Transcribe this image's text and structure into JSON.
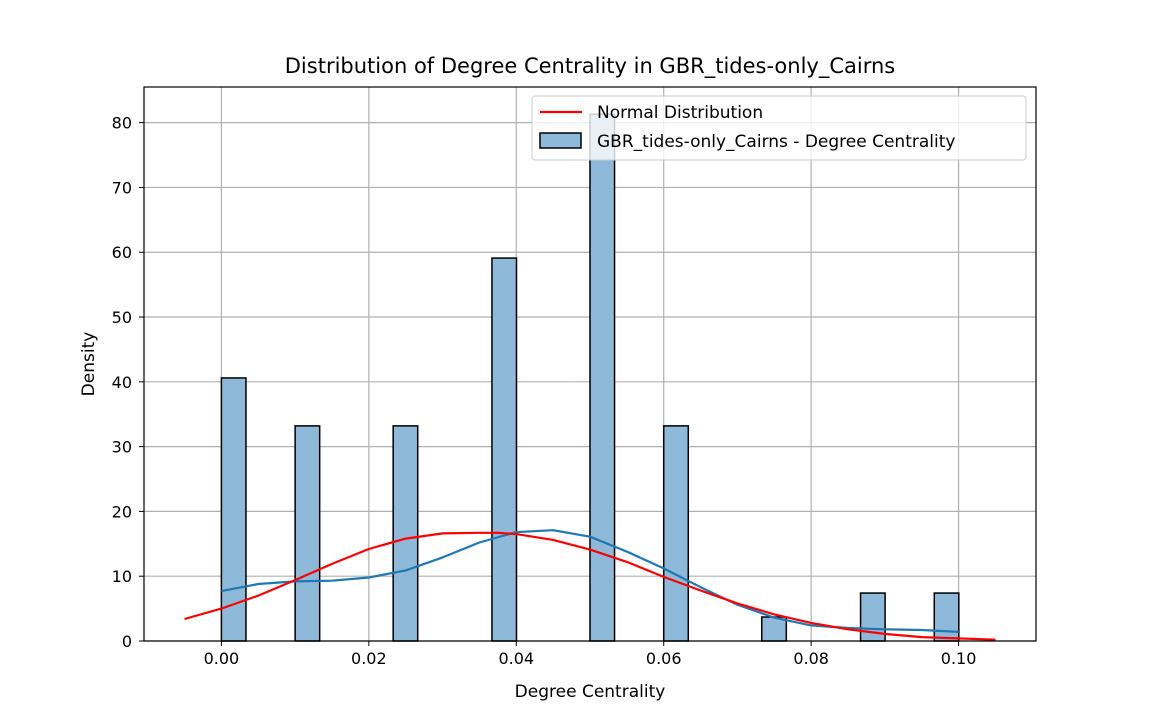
{
  "colors": {
    "bar_fill": "#8fb9d8",
    "bar_edge": "#000000",
    "kde_line": "#1f77b4",
    "normal_line": "#ff0000",
    "grid": "#b0b0b0"
  },
  "chart_data": {
    "type": "bar",
    "title": "Distribution of Degree Centrality in GBR_tides-only_Cairns",
    "xlabel": "Degree Centrality",
    "ylabel": "Density",
    "xlim": [
      -0.0105,
      0.1105
    ],
    "ylim": [
      0,
      85.5
    ],
    "grid": true,
    "legend_position": "top-right",
    "x_ticks": [
      0.0,
      0.02,
      0.04,
      0.06,
      0.08,
      0.1
    ],
    "x_tick_labels": [
      "0.00",
      "0.02",
      "0.04",
      "0.06",
      "0.08",
      "0.10"
    ],
    "y_ticks": [
      0,
      10,
      20,
      30,
      40,
      50,
      60,
      70,
      80
    ],
    "y_tick_labels": [
      "0",
      "10",
      "20",
      "30",
      "40",
      "50",
      "60",
      "70",
      "80"
    ],
    "bin_width": 0.00333,
    "bars": [
      {
        "x0": 0.0,
        "value": 40.6
      },
      {
        "x0": 0.01,
        "value": 33.2
      },
      {
        "x0": 0.0233,
        "value": 33.2
      },
      {
        "x0": 0.0367,
        "value": 59.1
      },
      {
        "x0": 0.05,
        "value": 81.3
      },
      {
        "x0": 0.06,
        "value": 33.2
      },
      {
        "x0": 0.0733,
        "value": 3.7
      },
      {
        "x0": 0.0867,
        "value": 7.4
      },
      {
        "x0": 0.0967,
        "value": 7.4
      }
    ],
    "series": [
      {
        "name": "Normal Distribution",
        "type": "line",
        "x": [
          -0.005,
          0.0,
          0.005,
          0.01,
          0.015,
          0.02,
          0.025,
          0.03,
          0.035,
          0.0375,
          0.04,
          0.045,
          0.05,
          0.055,
          0.06,
          0.065,
          0.07,
          0.075,
          0.08,
          0.085,
          0.09,
          0.095,
          0.1,
          0.105
        ],
        "y": [
          3.4,
          5.0,
          7.0,
          9.4,
          11.9,
          14.2,
          15.8,
          16.6,
          16.7,
          16.7,
          16.5,
          15.6,
          14.1,
          12.2,
          9.9,
          7.8,
          5.8,
          4.1,
          2.8,
          1.8,
          1.1,
          0.6,
          0.4,
          0.2
        ]
      },
      {
        "name": "KDE",
        "type": "line",
        "x": [
          0.0,
          0.005,
          0.01,
          0.015,
          0.02,
          0.025,
          0.03,
          0.035,
          0.04,
          0.045,
          0.05,
          0.055,
          0.06,
          0.065,
          0.07,
          0.075,
          0.08,
          0.085,
          0.09,
          0.095,
          0.1
        ],
        "y": [
          7.7,
          8.8,
          9.2,
          9.3,
          9.8,
          10.9,
          12.9,
          15.2,
          16.8,
          17.1,
          16.1,
          13.8,
          11.2,
          8.3,
          5.6,
          3.6,
          2.4,
          2.0,
          1.8,
          1.7,
          1.4
        ]
      }
    ],
    "legend": [
      {
        "label": "Normal Distribution",
        "kind": "line"
      },
      {
        "label": "GBR_tides-only_Cairns - Degree Centrality",
        "kind": "patch"
      }
    ]
  }
}
